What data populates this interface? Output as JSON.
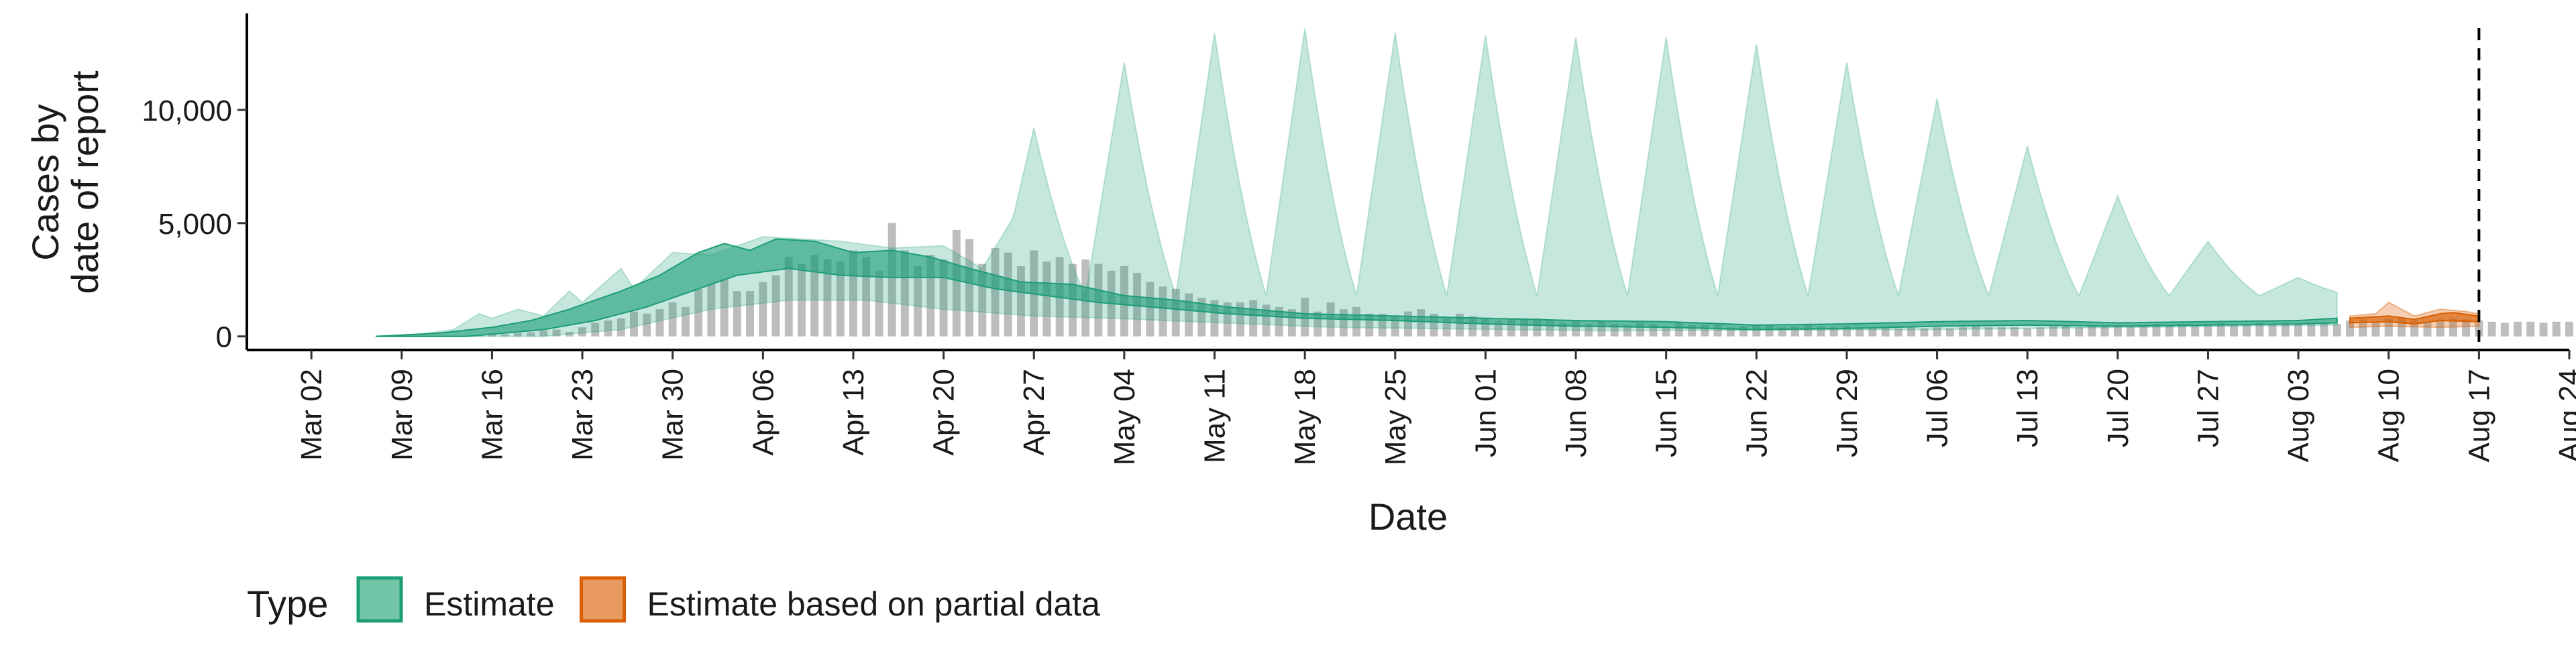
{
  "chart_data": {
    "type": "area",
    "xlabel": "Date",
    "ylabel_lines": [
      "Cases by",
      "date of report"
    ],
    "x_range": [
      "2020-02-26",
      "2020-08-24"
    ],
    "ylim": [
      -600,
      14200
    ],
    "y_ticks": [
      0,
      5000,
      10000
    ],
    "y_tick_labels": [
      "0",
      "5,000",
      "10,000"
    ],
    "x_tick_dates": [
      "2020-03-02",
      "2020-03-09",
      "2020-03-16",
      "2020-03-23",
      "2020-03-30",
      "2020-04-06",
      "2020-04-13",
      "2020-04-20",
      "2020-04-27",
      "2020-05-04",
      "2020-05-11",
      "2020-05-18",
      "2020-05-25",
      "2020-06-01",
      "2020-06-08",
      "2020-06-15",
      "2020-06-22",
      "2020-06-29",
      "2020-07-06",
      "2020-07-13",
      "2020-07-20",
      "2020-07-27",
      "2020-08-03",
      "2020-08-10",
      "2020-08-17",
      "2020-08-24"
    ],
    "x_tick_labels": [
      "Mar 02",
      "Mar 09",
      "Mar 16",
      "Mar 23",
      "Mar 30",
      "Apr 06",
      "Apr 13",
      "Apr 20",
      "Apr 27",
      "May 04",
      "May 11",
      "May 18",
      "May 25",
      "Jun 01",
      "Jun 08",
      "Jun 15",
      "Jun 22",
      "Jun 29",
      "Jul 06",
      "Jul 13",
      "Jul 20",
      "Jul 27",
      "Aug 03",
      "Aug 10",
      "Aug 17",
      "Aug 24"
    ],
    "vline_date": "2020-08-17",
    "grid": false,
    "legend_position": "bottom",
    "legend": {
      "title": "Type",
      "entries": [
        {
          "label": "Estimate",
          "fill": "#73c5a8",
          "stroke": "#1b9e77"
        },
        {
          "label": "Estimate based on partial data",
          "fill": "#e99a5e",
          "stroke": "#d95f02"
        }
      ]
    },
    "colors": {
      "estimate": "#1b9e77",
      "partial": "#d95f02",
      "observed_bar": "#bdbdbd",
      "outer_band_opacity": 0.25,
      "inner_band_opacity": 0.6
    },
    "observed_start": "2020-03-09",
    "observed_cases": [
      0,
      0,
      0,
      10,
      20,
      40,
      60,
      80,
      90,
      150,
      180,
      250,
      300,
      200,
      400,
      600,
      700,
      800,
      1100,
      1000,
      1200,
      1500,
      1300,
      2100,
      2300,
      2500,
      2000,
      2000,
      2400,
      2700,
      3500,
      3200,
      3600,
      3400,
      3300,
      3800,
      3500,
      2900,
      5000,
      3800,
      3100,
      3600,
      3400,
      4700,
      4300,
      3200,
      3900,
      3700,
      3100,
      3800,
      3300,
      3500,
      3200,
      3400,
      3200,
      2900,
      3100,
      2800,
      2400,
      2200,
      2100,
      1900,
      1700,
      1600,
      1500,
      1500,
      1600,
      1400,
      1300,
      1200,
      1700,
      1100,
      1500,
      1200,
      1300,
      1000,
      1000,
      900,
      1100,
      1200,
      1000,
      800,
      1000,
      900,
      800,
      700,
      800,
      800,
      800,
      750,
      600,
      700,
      550,
      700,
      550,
      500,
      600,
      550,
      450,
      600,
      500,
      500,
      500,
      400,
      450,
      500,
      500,
      400,
      450,
      500,
      450,
      400,
      450,
      400,
      400,
      450,
      350,
      400,
      350,
      400,
      350,
      400,
      450,
      400,
      400,
      400,
      350,
      400,
      450,
      500,
      400,
      500,
      450,
      500,
      450,
      500,
      550,
      500,
      550,
      500,
      550,
      600,
      500,
      550,
      600,
      550,
      600,
      550,
      600,
      600,
      550,
      600,
      650,
      600,
      600,
      650,
      600,
      650,
      600,
      650,
      600,
      650,
      650,
      600,
      650,
      650,
      600,
      650,
      650
    ],
    "partial_start": "2020-08-07",
    "partial_cases": [
      700,
      750,
      650,
      800,
      800,
      700,
      650,
      750,
      800,
      750,
      700
    ],
    "estimate_series": {
      "start": "2020-03-07",
      "end": "2020-08-06",
      "outer_upper_knots": [
        [
          "2020-03-07",
          20
        ],
        [
          "2020-03-10",
          60
        ],
        [
          "2020-03-13",
          300
        ],
        [
          "2020-03-15",
          1000
        ],
        [
          "2020-03-16",
          800
        ],
        [
          "2020-03-18",
          1200
        ],
        [
          "2020-03-20",
          900
        ],
        [
          "2020-03-22",
          2000
        ],
        [
          "2020-03-23",
          1500
        ],
        [
          "2020-03-26",
          3000
        ],
        [
          "2020-03-27",
          2100
        ],
        [
          "2020-03-30",
          3700
        ],
        [
          "2020-04-02",
          3600
        ],
        [
          "2020-04-06",
          4400
        ],
        [
          "2020-04-12",
          4200
        ],
        [
          "2020-04-16",
          3900
        ],
        [
          "2020-04-20",
          4000
        ],
        [
          "2020-04-23",
          3000
        ],
        [
          "2020-04-26",
          5800
        ],
        [
          "2020-04-30",
          3500
        ],
        [
          "2020-05-03",
          3000
        ]
      ],
      "outer_lower_knots": [
        [
          "2020-03-07",
          0
        ],
        [
          "2020-03-20",
          0
        ],
        [
          "2020-03-26",
          300
        ],
        [
          "2020-04-02",
          1200
        ],
        [
          "2020-04-08",
          1600
        ],
        [
          "2020-04-14",
          1600
        ],
        [
          "2020-04-20",
          1200
        ],
        [
          "2020-04-27",
          900
        ],
        [
          "2020-05-03",
          800
        ],
        [
          "2020-05-20",
          400
        ],
        [
          "2020-06-10",
          250
        ],
        [
          "2020-07-05",
          300
        ],
        [
          "2020-08-06",
          500
        ]
      ],
      "inner_upper_knots": [
        [
          "2020-03-07",
          0
        ],
        [
          "2020-03-12",
          150
        ],
        [
          "2020-03-16",
          400
        ],
        [
          "2020-03-19",
          700
        ],
        [
          "2020-03-22",
          1200
        ],
        [
          "2020-03-26",
          2000
        ],
        [
          "2020-03-29",
          2700
        ],
        [
          "2020-04-01",
          3700
        ],
        [
          "2020-04-03",
          4100
        ],
        [
          "2020-04-05",
          3800
        ],
        [
          "2020-04-07",
          4300
        ],
        [
          "2020-04-10",
          4200
        ],
        [
          "2020-04-13",
          3700
        ],
        [
          "2020-04-16",
          3800
        ],
        [
          "2020-04-19",
          3500
        ],
        [
          "2020-04-22",
          3000
        ],
        [
          "2020-04-26",
          2400
        ],
        [
          "2020-04-30",
          2300
        ],
        [
          "2020-05-04",
          1800
        ],
        [
          "2020-05-08",
          1600
        ],
        [
          "2020-05-12",
          1300
        ],
        [
          "2020-05-18",
          1000
        ],
        [
          "2020-05-25",
          900
        ],
        [
          "2020-06-01",
          800
        ],
        [
          "2020-06-08",
          700
        ],
        [
          "2020-06-15",
          650
        ],
        [
          "2020-06-22",
          500
        ],
        [
          "2020-06-29",
          550
        ],
        [
          "2020-07-06",
          650
        ],
        [
          "2020-07-13",
          700
        ],
        [
          "2020-07-20",
          600
        ],
        [
          "2020-07-27",
          650
        ],
        [
          "2020-08-03",
          700
        ],
        [
          "2020-08-06",
          800
        ]
      ],
      "inner_lower_knots": [
        [
          "2020-03-07",
          0
        ],
        [
          "2020-03-14",
          0
        ],
        [
          "2020-03-20",
          300
        ],
        [
          "2020-03-24",
          700
        ],
        [
          "2020-03-28",
          1300
        ],
        [
          "2020-04-01",
          2100
        ],
        [
          "2020-04-04",
          2700
        ],
        [
          "2020-04-08",
          3000
        ],
        [
          "2020-04-12",
          2700
        ],
        [
          "2020-04-16",
          2600
        ],
        [
          "2020-04-20",
          2600
        ],
        [
          "2020-04-24",
          2100
        ],
        [
          "2020-04-28",
          1800
        ],
        [
          "2020-05-02",
          1500
        ],
        [
          "2020-05-06",
          1300
        ],
        [
          "2020-05-12",
          1000
        ],
        [
          "2020-05-18",
          800
        ],
        [
          "2020-05-25",
          700
        ],
        [
          "2020-06-01",
          550
        ],
        [
          "2020-06-08",
          450
        ],
        [
          "2020-06-15",
          400
        ],
        [
          "2020-06-22",
          300
        ],
        [
          "2020-06-29",
          350
        ],
        [
          "2020-07-06",
          450
        ],
        [
          "2020-07-13",
          500
        ],
        [
          "2020-07-20",
          450
        ],
        [
          "2020-07-27",
          500
        ],
        [
          "2020-08-03",
          550
        ],
        [
          "2020-08-06",
          600
        ]
      ],
      "weekly_peaks": [
        {
          "date": "2020-04-27",
          "upper": 9200
        },
        {
          "date": "2020-05-04",
          "upper": 12100
        },
        {
          "date": "2020-05-11",
          "upper": 13400
        },
        {
          "date": "2020-05-18",
          "upper": 13600
        },
        {
          "date": "2020-05-25",
          "upper": 13400
        },
        {
          "date": "2020-06-01",
          "upper": 13300
        },
        {
          "date": "2020-06-08",
          "upper": 13200
        },
        {
          "date": "2020-06-15",
          "upper": 13200
        },
        {
          "date": "2020-06-22",
          "upper": 12900
        },
        {
          "date": "2020-06-29",
          "upper": 12100
        },
        {
          "date": "2020-07-06",
          "upper": 10500
        },
        {
          "date": "2020-07-13",
          "upper": 8400
        },
        {
          "date": "2020-07-20",
          "upper": 6200
        },
        {
          "date": "2020-07-27",
          "upper": 4200
        },
        {
          "date": "2020-08-03",
          "upper": 2600
        }
      ],
      "trough_upper": 1800
    },
    "partial_series": {
      "start": "2020-08-07",
      "end": "2020-08-17",
      "outer_upper_knots": [
        [
          "2020-08-07",
          900
        ],
        [
          "2020-08-09",
          1000
        ],
        [
          "2020-08-10",
          1500
        ],
        [
          "2020-08-12",
          900
        ],
        [
          "2020-08-14",
          1200
        ],
        [
          "2020-08-16",
          1100
        ],
        [
          "2020-08-17",
          1000
        ]
      ],
      "outer_lower_knots": [
        [
          "2020-08-07",
          400
        ],
        [
          "2020-08-10",
          450
        ],
        [
          "2020-08-14",
          400
        ],
        [
          "2020-08-17",
          450
        ]
      ],
      "inner_upper_knots": [
        [
          "2020-08-07",
          800
        ],
        [
          "2020-08-10",
          900
        ],
        [
          "2020-08-12",
          750
        ],
        [
          "2020-08-14",
          1000
        ],
        [
          "2020-08-15",
          1050
        ],
        [
          "2020-08-17",
          900
        ]
      ],
      "inner_lower_knots": [
        [
          "2020-08-07",
          600
        ],
        [
          "2020-08-10",
          650
        ],
        [
          "2020-08-12",
          550
        ],
        [
          "2020-08-14",
          700
        ],
        [
          "2020-08-17",
          650
        ]
      ]
    }
  }
}
